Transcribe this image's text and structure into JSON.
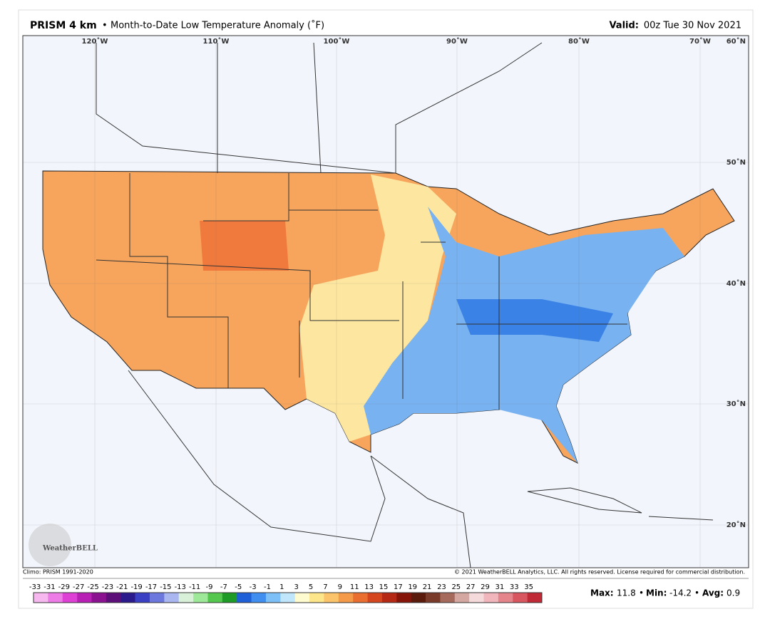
{
  "header": {
    "product": "PRISM 4 km",
    "separator": "•",
    "title": "Month-to-Date Low Temperature Anomaly (˚F)",
    "valid_label": "Valid:",
    "valid_value": "00z Tue 30 Nov 2021"
  },
  "longitudes": [
    "120˚W",
    "110˚W",
    "100˚W",
    "90˚W",
    "80˚W",
    "70˚W"
  ],
  "latitudes": [
    "60˚N",
    "50˚N",
    "40˚N",
    "30˚N",
    "20˚N"
  ],
  "logo": "WeatherBELL",
  "footer": {
    "climo": "Climo: PRISM 1991-2020",
    "copyright": "© 2021 WeatherBELL Analytics, LLC. All rights reserved. License required for commercial distribution."
  },
  "colorbar": {
    "labels": [
      -33,
      -31,
      -29,
      -27,
      -25,
      -23,
      -21,
      -19,
      -17,
      -15,
      -13,
      -11,
      -9,
      -7,
      -5,
      -3,
      -1,
      1,
      3,
      5,
      7,
      9,
      11,
      13,
      15,
      17,
      19,
      21,
      23,
      25,
      27,
      29,
      31,
      33,
      35
    ],
    "colors": [
      "#f7b8f0",
      "#ee7ce6",
      "#de3fd5",
      "#b81fb4",
      "#8a1290",
      "#5c0f78",
      "#2a1a8c",
      "#3a3fc4",
      "#6c78de",
      "#aab6f0",
      "#d8f0d8",
      "#9ee89a",
      "#54c84e",
      "#1e9a26",
      "#1f5fd8",
      "#3f8ef0",
      "#7cc0f7",
      "#c0e6fb",
      "#fffbd0",
      "#fde58a",
      "#fbc46a",
      "#f59a48",
      "#ea6e30",
      "#d6461e",
      "#b52814",
      "#861408",
      "#5a1a0c",
      "#7a3a2a",
      "#a66a5c",
      "#d4a8a0",
      "#f4dada",
      "#f0b6bc",
      "#e6848c",
      "#d85660",
      "#c02a36"
    ]
  },
  "stats": {
    "max_label": "Max:",
    "max": 11.8,
    "min_label": "Min:",
    "min": -14.2,
    "avg_label": "Avg:",
    "avg": 0.9
  }
}
